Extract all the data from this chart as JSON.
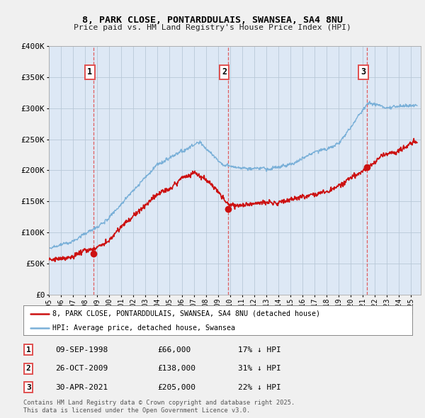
{
  "title_line1": "8, PARK CLOSE, PONTARDDULAIS, SWANSEA, SA4 8NU",
  "title_line2": "Price paid vs. HM Land Registry's House Price Index (HPI)",
  "ylim": [
    0,
    400000
  ],
  "yticks": [
    0,
    50000,
    100000,
    150000,
    200000,
    250000,
    300000,
    350000,
    400000
  ],
  "ytick_labels": [
    "£0",
    "£50K",
    "£100K",
    "£150K",
    "£200K",
    "£250K",
    "£300K",
    "£350K",
    "£400K"
  ],
  "hpi_color": "#7ab0d8",
  "price_color": "#cc1111",
  "vline_color": "#e05050",
  "marker_color": "#cc1111",
  "sales": [
    {
      "date_num": 1998.69,
      "price": 66000,
      "label": "1"
    },
    {
      "date_num": 2009.82,
      "price": 138000,
      "label": "2"
    },
    {
      "date_num": 2021.33,
      "price": 205000,
      "label": "3"
    }
  ],
  "legend_label_price": "8, PARK CLOSE, PONTARDDULAIS, SWANSEA, SA4 8NU (detached house)",
  "legend_label_hpi": "HPI: Average price, detached house, Swansea",
  "table_rows": [
    {
      "num": "1",
      "date": "09-SEP-1998",
      "price": "£66,000",
      "pct": "17% ↓ HPI"
    },
    {
      "num": "2",
      "date": "26-OCT-2009",
      "price": "£138,000",
      "pct": "31% ↓ HPI"
    },
    {
      "num": "3",
      "date": "30-APR-2021",
      "price": "£205,000",
      "pct": "22% ↓ HPI"
    }
  ],
  "footnote": "Contains HM Land Registry data © Crown copyright and database right 2025.\nThis data is licensed under the Open Government Licence v3.0.",
  "bg_color": "#f0f0f0",
  "plot_bg_color": "#dde8f5",
  "grid_color": "#b8c8d8"
}
